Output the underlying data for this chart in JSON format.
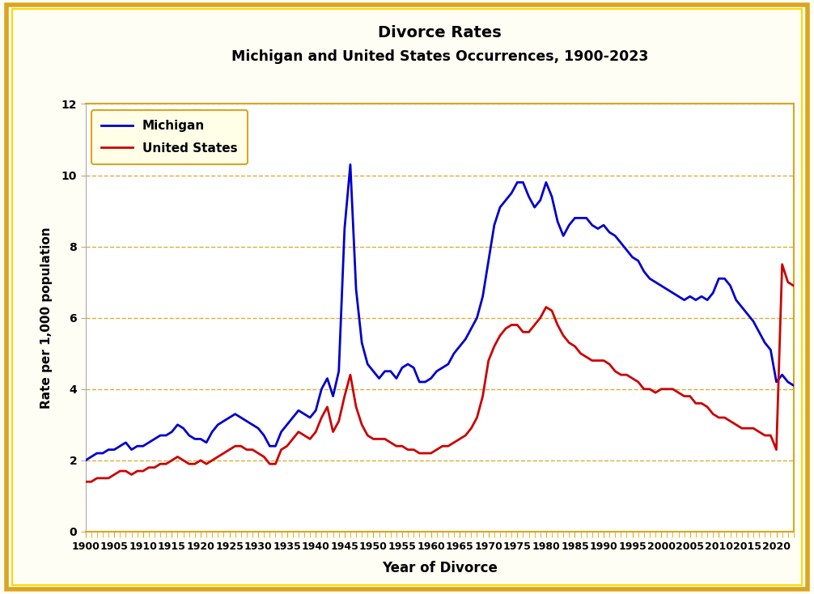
{
  "title_line1": "Divorce Rates",
  "title_line2": "Michigan and United States Occurrences, 1900-2023",
  "xlabel": "Year of Divorce",
  "ylabel": "Rate per 1,000 population",
  "ylim": [
    0,
    12
  ],
  "xlim": [
    1900,
    2023
  ],
  "michigan_color": "#0000CC",
  "us_color": "#CC0000",
  "background_color": "#FFFEF5",
  "plot_bg_color": "#FFFFFF",
  "outer_border_color": "#DAA520",
  "grid_color": "#DAA520",
  "legend_bg": "#FFFFE8",
  "legend_border": "#DAA520",
  "michigan_data": {
    "years": [
      1900,
      1901,
      1902,
      1903,
      1904,
      1905,
      1906,
      1907,
      1908,
      1909,
      1910,
      1911,
      1912,
      1913,
      1914,
      1915,
      1916,
      1917,
      1918,
      1919,
      1920,
      1921,
      1922,
      1923,
      1924,
      1925,
      1926,
      1927,
      1928,
      1929,
      1930,
      1931,
      1932,
      1933,
      1934,
      1935,
      1936,
      1937,
      1938,
      1939,
      1940,
      1941,
      1942,
      1943,
      1944,
      1945,
      1946,
      1947,
      1948,
      1949,
      1950,
      1951,
      1952,
      1953,
      1954,
      1955,
      1956,
      1957,
      1958,
      1959,
      1960,
      1961,
      1962,
      1963,
      1964,
      1965,
      1966,
      1967,
      1968,
      1969,
      1970,
      1971,
      1972,
      1973,
      1974,
      1975,
      1976,
      1977,
      1978,
      1979,
      1980,
      1981,
      1982,
      1983,
      1984,
      1985,
      1986,
      1987,
      1988,
      1989,
      1990,
      1991,
      1992,
      1993,
      1994,
      1995,
      1996,
      1997,
      1998,
      1999,
      2000,
      2001,
      2002,
      2003,
      2004,
      2005,
      2006,
      2007,
      2008,
      2009,
      2010,
      2011,
      2012,
      2013,
      2014,
      2015,
      2016,
      2017,
      2018,
      2019,
      2020,
      2021,
      2022,
      2023
    ],
    "rates": [
      2.0,
      2.1,
      2.2,
      2.2,
      2.3,
      2.3,
      2.4,
      2.5,
      2.3,
      2.4,
      2.4,
      2.5,
      2.6,
      2.7,
      2.7,
      2.8,
      3.0,
      2.9,
      2.7,
      2.6,
      2.6,
      2.5,
      2.8,
      3.0,
      3.1,
      3.2,
      3.3,
      3.2,
      3.1,
      3.0,
      2.9,
      2.7,
      2.4,
      2.4,
      2.8,
      3.0,
      3.2,
      3.4,
      3.3,
      3.2,
      3.4,
      4.0,
      4.3,
      3.8,
      4.5,
      8.5,
      10.3,
      6.8,
      5.3,
      4.7,
      4.5,
      4.3,
      4.5,
      4.5,
      4.3,
      4.6,
      4.7,
      4.6,
      4.2,
      4.2,
      4.3,
      4.5,
      4.6,
      4.7,
      5.0,
      5.2,
      5.4,
      5.7,
      6.0,
      6.6,
      7.6,
      8.6,
      9.1,
      9.3,
      9.5,
      9.8,
      9.8,
      9.4,
      9.1,
      9.3,
      9.8,
      9.4,
      8.7,
      8.3,
      8.6,
      8.8,
      8.8,
      8.8,
      8.6,
      8.5,
      8.6,
      8.4,
      8.3,
      8.1,
      7.9,
      7.7,
      7.6,
      7.3,
      7.1,
      7.0,
      6.9,
      6.8,
      6.7,
      6.6,
      6.5,
      6.6,
      6.5,
      6.6,
      6.5,
      6.7,
      7.1,
      7.1,
      6.9,
      6.5,
      6.3,
      6.1,
      5.9,
      5.6,
      5.3,
      5.1,
      4.2,
      4.4,
      4.2,
      4.1
    ]
  },
  "us_data": {
    "years": [
      1900,
      1901,
      1902,
      1903,
      1904,
      1905,
      1906,
      1907,
      1908,
      1909,
      1910,
      1911,
      1912,
      1913,
      1914,
      1915,
      1916,
      1917,
      1918,
      1919,
      1920,
      1921,
      1922,
      1923,
      1924,
      1925,
      1926,
      1927,
      1928,
      1929,
      1930,
      1931,
      1932,
      1933,
      1934,
      1935,
      1936,
      1937,
      1938,
      1939,
      1940,
      1941,
      1942,
      1943,
      1944,
      1945,
      1946,
      1947,
      1948,
      1949,
      1950,
      1951,
      1952,
      1953,
      1954,
      1955,
      1956,
      1957,
      1958,
      1959,
      1960,
      1961,
      1962,
      1963,
      1964,
      1965,
      1966,
      1967,
      1968,
      1969,
      1970,
      1971,
      1972,
      1973,
      1974,
      1975,
      1976,
      1977,
      1978,
      1979,
      1980,
      1981,
      1982,
      1983,
      1984,
      1985,
      1986,
      1987,
      1988,
      1989,
      1990,
      1991,
      1992,
      1993,
      1994,
      1995,
      1996,
      1997,
      1998,
      1999,
      2000,
      2001,
      2002,
      2003,
      2004,
      2005,
      2006,
      2007,
      2008,
      2009,
      2010,
      2011,
      2012,
      2013,
      2014,
      2015,
      2016,
      2017,
      2018,
      2019,
      2020,
      2021,
      2022,
      2023
    ],
    "rates": [
      1.4,
      1.4,
      1.5,
      1.5,
      1.5,
      1.6,
      1.7,
      1.7,
      1.6,
      1.7,
      1.7,
      1.8,
      1.8,
      1.9,
      1.9,
      2.0,
      2.1,
      2.0,
      1.9,
      1.9,
      2.0,
      1.9,
      2.0,
      2.1,
      2.2,
      2.3,
      2.4,
      2.4,
      2.3,
      2.3,
      2.2,
      2.1,
      1.9,
      1.9,
      2.3,
      2.4,
      2.6,
      2.8,
      2.7,
      2.6,
      2.8,
      3.2,
      3.5,
      2.8,
      3.1,
      3.8,
      4.4,
      3.5,
      3.0,
      2.7,
      2.6,
      2.6,
      2.6,
      2.5,
      2.4,
      2.4,
      2.3,
      2.3,
      2.2,
      2.2,
      2.2,
      2.3,
      2.4,
      2.4,
      2.5,
      2.6,
      2.7,
      2.9,
      3.2,
      3.8,
      4.8,
      5.2,
      5.5,
      5.7,
      5.8,
      5.8,
      5.6,
      5.6,
      5.8,
      6.0,
      6.3,
      6.2,
      5.8,
      5.5,
      5.3,
      5.2,
      5.0,
      4.9,
      4.8,
      4.8,
      4.8,
      4.7,
      4.5,
      4.4,
      4.4,
      4.3,
      4.2,
      4.0,
      4.0,
      3.9,
      4.0,
      4.0,
      4.0,
      3.9,
      3.8,
      3.8,
      3.6,
      3.6,
      3.5,
      3.3,
      3.2,
      3.2,
      3.1,
      3.0,
      2.9,
      2.9,
      2.9,
      2.8,
      2.7,
      2.7,
      2.3,
      7.5,
      7.0,
      6.9
    ]
  }
}
